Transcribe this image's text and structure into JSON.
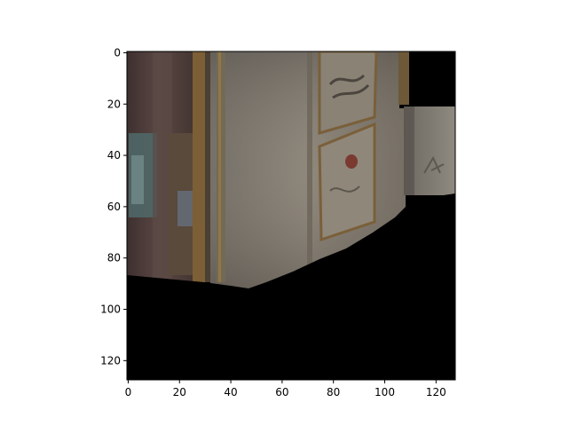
{
  "chart_data": {
    "type": "image",
    "title": "",
    "xlabel": "",
    "ylabel": "",
    "image_extent": {
      "width": 128,
      "height": 128
    },
    "xlim": [
      -0.5,
      127.5
    ],
    "ylim": [
      127.5,
      -0.5
    ],
    "x_ticks": [
      0,
      20,
      40,
      60,
      80,
      100,
      120
    ],
    "y_ticks": [
      0,
      20,
      40,
      60,
      80,
      100,
      120
    ],
    "grid": false,
    "legend": "none",
    "image_content": {
      "description_colors": {
        "wall": "#8a8478",
        "wall_shadow": "#5e574f",
        "curtain": "#4a3a36",
        "frame_gold": "#8a6a3a",
        "black_fill": "#000000"
      }
    }
  }
}
